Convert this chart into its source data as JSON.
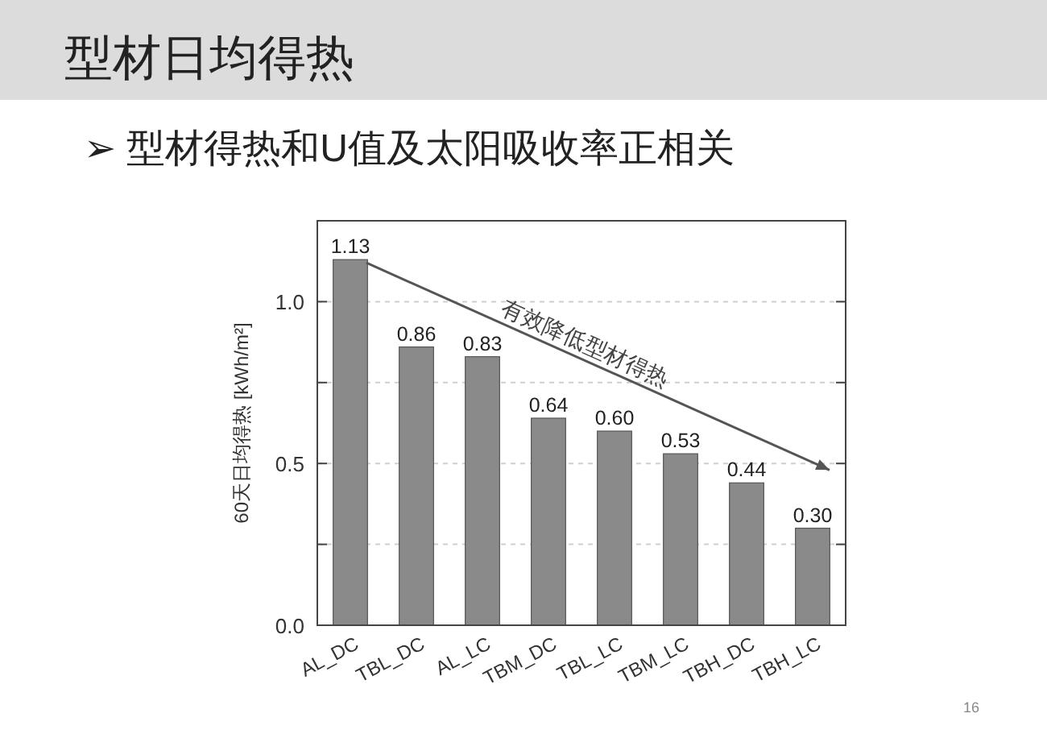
{
  "chart_data": {
    "type": "bar",
    "title": "型材日均得热",
    "subtitle": "➢ 型材得热和U值及太阳吸收率正相关",
    "ylabel": "60天日均得热 [kWh/m²]",
    "categories": [
      "AL_DC",
      "TBL_DC",
      "AL_LC",
      "TBM_DC",
      "TBL_LC",
      "TBM_LC",
      "TBH_DC",
      "TBH_LC"
    ],
    "values": [
      1.13,
      0.86,
      0.83,
      0.64,
      0.6,
      0.53,
      0.44,
      0.3
    ],
    "color": "#8a8a8a",
    "ylim": [
      0,
      1.25
    ],
    "yticks": [
      {
        "value": 0,
        "label": "0.0"
      },
      {
        "value": 0.25,
        "label": null
      },
      {
        "value": 0.5,
        "label": "0.5"
      },
      {
        "value": 0.75,
        "label": null
      },
      {
        "value": 1,
        "label": "1.0"
      }
    ],
    "grid": "y",
    "value_labels": [
      "1.13",
      "0.86",
      "0.83",
      "0.64",
      "0.60",
      "0.53",
      "0.44",
      "0.30"
    ],
    "annotations": [
      "有效降低型材得热",
      "16"
    ]
  }
}
